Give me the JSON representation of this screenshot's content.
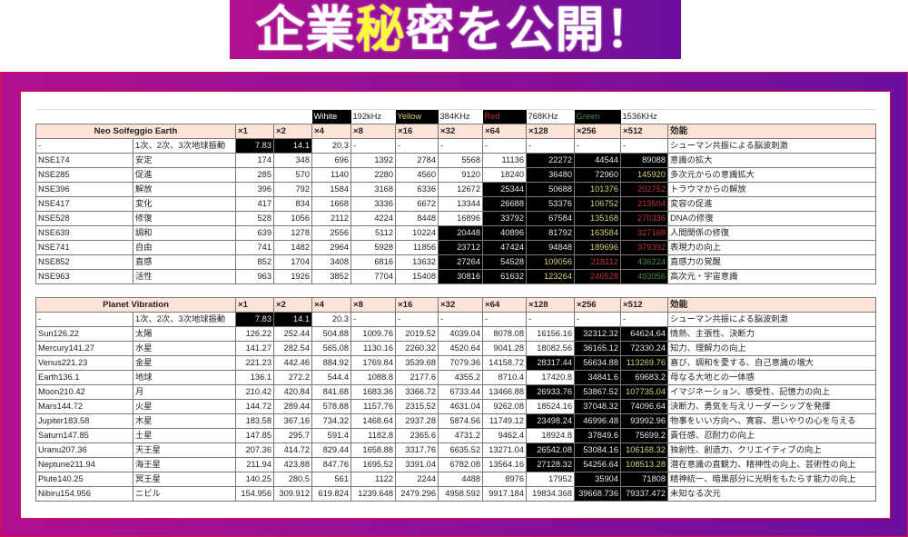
{
  "banner": {
    "parts": [
      "企業",
      "秘",
      "密を公開！"
    ]
  },
  "colors": {
    "frame_start": "#b0108f",
    "frame_end": "#6a0f9e",
    "border": "#e0103a",
    "header_bg": "#fde3d8",
    "yellow": "#d8d27a",
    "red": "#c0303a",
    "green": "#4c8a4c"
  },
  "legend": [
    {
      "label": "Wihite",
      "text_color": "#ffffff",
      "freq": "192kHz"
    },
    {
      "label": "Yellow",
      "text_color": "#d8d27a",
      "freq": "384KHz"
    },
    {
      "label": "Red",
      "text_color": "#c0303a",
      "freq": "768KHz"
    },
    {
      "label": "Green",
      "text_color": "#4c8a4c",
      "freq": "1536KHz"
    }
  ],
  "highlight_key": {
    "b": "black cell",
    "y": "black cell, yellow text",
    "r": "black cell, red text",
    "g": "black cell, green text"
  },
  "tables": [
    {
      "title": "Neo Solfeggio Earth",
      "headers": [
        "×1",
        "×2",
        "×4",
        "×8",
        "×16",
        "×32",
        "×64",
        "×128",
        "×256",
        "×512",
        "効能"
      ],
      "rows": [
        {
          "name": "-",
          "jp": "1次、2次、3次地球振動",
          "values": [
            "7.83",
            "14.1",
            "20.3",
            "-",
            "-",
            "-",
            "-",
            "-",
            "-",
            "-"
          ],
          "hl": [
            "b",
            "b",
            "",
            "",
            "",
            "",
            "",
            "",
            "",
            ""
          ],
          "effect": "シューマン共振による脳波刺激"
        },
        {
          "name": "NSE174",
          "jp": "安定",
          "values": [
            "174",
            "348",
            "696",
            "1392",
            "2784",
            "5568",
            "11136",
            "22272",
            "44544",
            "89088"
          ],
          "hl": [
            "",
            "",
            "",
            "",
            "",
            "",
            "",
            "b",
            "b",
            "b"
          ],
          "effect": "意識の拡大"
        },
        {
          "name": "NSE285",
          "jp": "促進",
          "values": [
            "285",
            "570",
            "1140",
            "2280",
            "4560",
            "9120",
            "18240",
            "36480",
            "72960",
            "145920"
          ],
          "hl": [
            "",
            "",
            "",
            "",
            "",
            "",
            "",
            "b",
            "b",
            "y"
          ],
          "effect": "多次元からの意識拡大"
        },
        {
          "name": "NSE396",
          "jp": "解放",
          "values": [
            "396",
            "792",
            "1584",
            "3168",
            "6336",
            "12672",
            "25344",
            "50688",
            "101376",
            "202752"
          ],
          "hl": [
            "",
            "",
            "",
            "",
            "",
            "",
            "b",
            "b",
            "y",
            "r"
          ],
          "effect": "トラウマからの解放"
        },
        {
          "name": "NSE417",
          "jp": "変化",
          "values": [
            "417",
            "834",
            "1668",
            "3336",
            "6672",
            "13344",
            "26688",
            "53376",
            "106752",
            "213504"
          ],
          "hl": [
            "",
            "",
            "",
            "",
            "",
            "",
            "b",
            "b",
            "y",
            "r"
          ],
          "effect": "変容の促進"
        },
        {
          "name": "NSE528",
          "jp": "修復",
          "values": [
            "528",
            "1056",
            "2112",
            "4224",
            "8448",
            "16896",
            "33792",
            "67584",
            "135168",
            "270336"
          ],
          "hl": [
            "",
            "",
            "",
            "",
            "",
            "",
            "b",
            "b",
            "y",
            "r"
          ],
          "effect": "DNAの修復"
        },
        {
          "name": "NSE639",
          "jp": "調和",
          "values": [
            "639",
            "1278",
            "2556",
            "5112",
            "10224",
            "20448",
            "40896",
            "81792",
            "163584",
            "327168"
          ],
          "hl": [
            "",
            "",
            "",
            "",
            "",
            "b",
            "b",
            "b",
            "y",
            "r"
          ],
          "effect": "人間関係の修復"
        },
        {
          "name": "NSE741",
          "jp": "自由",
          "values": [
            "741",
            "1482",
            "2964",
            "5928",
            "11856",
            "23712",
            "47424",
            "94848",
            "189696",
            "379392"
          ],
          "hl": [
            "",
            "",
            "",
            "",
            "",
            "b",
            "b",
            "b",
            "y",
            "r"
          ],
          "effect": "表現力の向上"
        },
        {
          "name": "NSE852",
          "jp": "直感",
          "values": [
            "852",
            "1704",
            "3408",
            "6816",
            "13632",
            "27264",
            "54528",
            "109056",
            "218112",
            "436224"
          ],
          "hl": [
            "",
            "",
            "",
            "",
            "",
            "b",
            "b",
            "y",
            "r",
            "g"
          ],
          "effect": "直感力の覚醒"
        },
        {
          "name": "NSE963",
          "jp": "活性",
          "values": [
            "963",
            "1926",
            "3852",
            "7704",
            "15408",
            "30816",
            "61632",
            "123264",
            "246528",
            "493056"
          ],
          "hl": [
            "",
            "",
            "",
            "",
            "",
            "b",
            "b",
            "y",
            "r",
            "g"
          ],
          "effect": "高次元・宇宙意識"
        }
      ]
    },
    {
      "title": "Planet Vibration",
      "headers": [
        "×1",
        "×2",
        "×4",
        "×8",
        "×16",
        "×32",
        "×64",
        "×128",
        "×256",
        "×512",
        "効能"
      ],
      "rows": [
        {
          "name": "-",
          "jp": "1次、2次、3次地球振動",
          "values": [
            "7.83",
            "14.1",
            "20.3",
            "-",
            "-",
            "-",
            "-",
            "-",
            "-",
            "-"
          ],
          "hl": [
            "b",
            "b",
            "",
            "",
            "",
            "",
            "",
            "",
            "",
            ""
          ],
          "effect": "シューマン共振による脳波刺激"
        },
        {
          "name": "Sun126.22",
          "jp": "太陽",
          "values": [
            "126.22",
            "252.44",
            "504.88",
            "1009.76",
            "2019.52",
            "4039.04",
            "8078.08",
            "16156.16",
            "32312.32",
            "64624.64"
          ],
          "hl": [
            "",
            "",
            "",
            "",
            "",
            "",
            "",
            "",
            "b",
            "b"
          ],
          "effect": "情熱、主張性、決断力"
        },
        {
          "name": "Mercury141.27",
          "jp": "水星",
          "values": [
            "141.27",
            "282.54",
            "565.08",
            "1130.16",
            "2260.32",
            "4520.64",
            "9041.28",
            "18082.56",
            "36165.12",
            "72330.24"
          ],
          "hl": [
            "",
            "",
            "",
            "",
            "",
            "",
            "",
            "",
            "b",
            "b"
          ],
          "effect": "知力、理解力の向上"
        },
        {
          "name": "Venus221.23",
          "jp": "金星",
          "values": [
            "221.23",
            "442.46",
            "884.92",
            "1769.84",
            "3539.68",
            "7079.36",
            "14158.72",
            "28317.44",
            "56634.88",
            "113269.76"
          ],
          "hl": [
            "",
            "",
            "",
            "",
            "",
            "",
            "",
            "b",
            "b",
            "y"
          ],
          "effect": "喜び、調和を愛する、自己意識の増大"
        },
        {
          "name": "Earth136.1",
          "jp": "地球",
          "values": [
            "136.1",
            "272.2",
            "544.4",
            "1088.8",
            "2177.6",
            "4355.2",
            "8710.4",
            "17420.8",
            "34841.6",
            "69683.2"
          ],
          "hl": [
            "",
            "",
            "",
            "",
            "",
            "",
            "",
            "",
            "b",
            "b"
          ],
          "effect": "母なる大地との一体感"
        },
        {
          "name": "Moon210.42",
          "jp": "月",
          "values": [
            "210.42",
            "420.84",
            "841.68",
            "1683.36",
            "3366.72",
            "6733.44",
            "13466.88",
            "26933.76",
            "53867.52",
            "107735.04"
          ],
          "hl": [
            "",
            "",
            "",
            "",
            "",
            "",
            "",
            "b",
            "b",
            "y"
          ],
          "effect": "イマジネーション、感受性、記憶力の向上"
        },
        {
          "name": "Mars144.72",
          "jp": "火星",
          "values": [
            "144.72",
            "289.44",
            "578.88",
            "1157.76",
            "2315.52",
            "4631.04",
            "9262.08",
            "18524.16",
            "37048.32",
            "74096.64"
          ],
          "hl": [
            "",
            "",
            "",
            "",
            "",
            "",
            "",
            "",
            "b",
            "b"
          ],
          "effect": "決断力、勇気を与えリーダーシップを発揮"
        },
        {
          "name": "Jupiter183.58",
          "jp": "木星",
          "values": [
            "183.58",
            "367.16",
            "734.32",
            "1468.64",
            "2937.28",
            "5874.56",
            "11749.12",
            "23498.24",
            "46996.48",
            "93992.96"
          ],
          "hl": [
            "",
            "",
            "",
            "",
            "",
            "",
            "",
            "b",
            "b",
            "b"
          ],
          "effect": "物事をいい方向へ、寛容、思いやりの心を与える"
        },
        {
          "name": "Saturn147.85",
          "jp": "土星",
          "values": [
            "147.85",
            "295.7",
            "591.4",
            "1182.8",
            "2365.6",
            "4731.2",
            "9462.4",
            "18924.8",
            "37849.6",
            "75699.2"
          ],
          "hl": [
            "",
            "",
            "",
            "",
            "",
            "",
            "",
            "",
            "b",
            "b"
          ],
          "effect": "責任感、忍耐力の向上"
        },
        {
          "name": "Uranu207.36",
          "jp": "天王星",
          "values": [
            "207.36",
            "414.72",
            "829.44",
            "1658.88",
            "3317.76",
            "6635.52",
            "13271.04",
            "26542.08",
            "53084.16",
            "106168.32"
          ],
          "hl": [
            "",
            "",
            "",
            "",
            "",
            "",
            "",
            "b",
            "b",
            "y"
          ],
          "effect": "独創性、創造力、クリエイティブの向上"
        },
        {
          "name": "Neptune211.94",
          "jp": "海王星",
          "values": [
            "211.94",
            "423.88",
            "847.76",
            "1695.52",
            "3391.04",
            "6782.08",
            "13564.16",
            "27128.32",
            "54256.64",
            "108513.28"
          ],
          "hl": [
            "",
            "",
            "",
            "",
            "",
            "",
            "",
            "b",
            "b",
            "y"
          ],
          "effect": "潜在意識の直観力、精神性の向上、芸術性の向上"
        },
        {
          "name": "Plute140.25",
          "jp": "冥王星",
          "values": [
            "140.25",
            "280.5",
            "561",
            "1122",
            "2244",
            "4488",
            "8976",
            "17952",
            "35904",
            "71808"
          ],
          "hl": [
            "",
            "",
            "",
            "",
            "",
            "",
            "",
            "",
            "b",
            "b"
          ],
          "effect": "精神統一、暗黒部分に光明をもたらす能力の向上"
        },
        {
          "name": "Nibiru154.956",
          "jp": "ニビル",
          "values": [
            "154.956",
            "309.912",
            "619.824",
            "1239.648",
            "2479.296",
            "4958.592",
            "9917.184",
            "19834.368",
            "39668.736",
            "79337.472"
          ],
          "hl": [
            "",
            "",
            "",
            "",
            "",
            "",
            "",
            "",
            "b",
            "b"
          ],
          "effect": "未知なる次元"
        }
      ]
    }
  ]
}
